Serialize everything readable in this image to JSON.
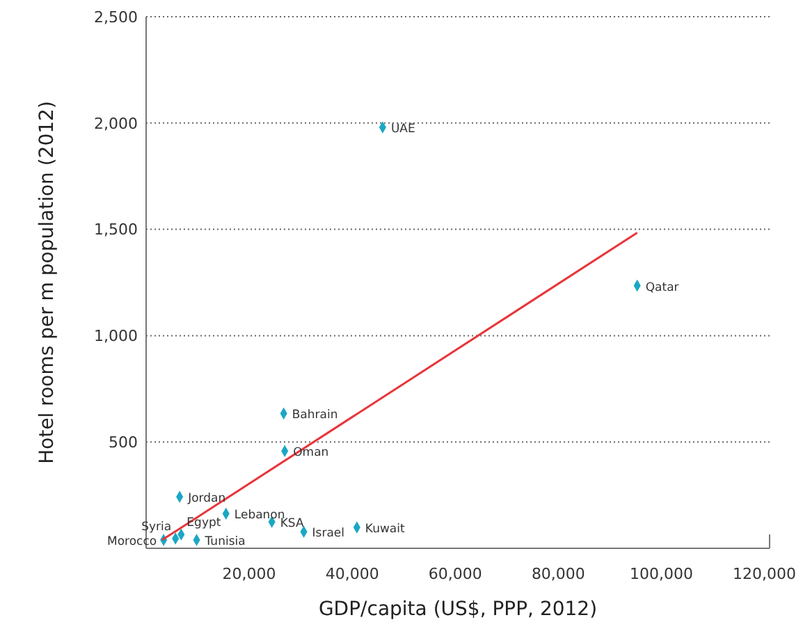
{
  "chart_data": {
    "type": "scatter",
    "xlabel": "GDP/capita (US$, PPP, 2012)",
    "ylabel": "Hotel rooms per m population (2012)",
    "xlim": [
      0,
      121000
    ],
    "ylim": [
      0,
      2500
    ],
    "xticks": [
      {
        "value": 20000,
        "label": "20,000"
      },
      {
        "value": 40000,
        "label": "40,000"
      },
      {
        "value": 60000,
        "label": "60,000"
      },
      {
        "value": 80000,
        "label": "80,000"
      },
      {
        "value": 100000,
        "label": "100,000"
      },
      {
        "value": 120000,
        "label": "120,000"
      }
    ],
    "yticks": [
      {
        "value": 500,
        "label": "500"
      },
      {
        "value": 1000,
        "label": "1,000"
      },
      {
        "value": 1500,
        "label": "1,500"
      },
      {
        "value": 2000,
        "label": "2,000"
      },
      {
        "value": 2500,
        "label": "2,500"
      }
    ],
    "grid": "y",
    "marker": "diamond",
    "series": [
      {
        "color": "#1aa7c4",
        "x": [
          45900,
          95300,
          26700,
          26900,
          6500,
          15500,
          24400,
          30600,
          40900,
          5700,
          6800,
          9800,
          3400
        ],
        "values": [
          1980,
          1235,
          634,
          457,
          242,
          163,
          124,
          78,
          98,
          46,
          65,
          39,
          39
        ]
      },
      {
        "type": "line",
        "marker": "none",
        "color": "#e8353a",
        "x": [
          3100,
          95300
        ],
        "values": [
          39,
          1484
        ]
      }
    ],
    "annotations": [
      {
        "text": "UAE",
        "x": 45900,
        "y": 1980
      },
      {
        "text": "Qatar",
        "x": 95300,
        "y": 1235
      },
      {
        "text": "Bahrain",
        "x": 26700,
        "y": 634
      },
      {
        "text": "Oman",
        "x": 26900,
        "y": 457
      },
      {
        "text": "Jordan",
        "x": 6500,
        "y": 242
      },
      {
        "text": "Lebanon",
        "x": 15500,
        "y": 163
      },
      {
        "text": "KSA",
        "x": 24400,
        "y": 124
      },
      {
        "text": "Israel",
        "x": 30600,
        "y": 78
      },
      {
        "text": "Kuwait",
        "x": 40900,
        "y": 98
      },
      {
        "text": "Syria",
        "x": 5700,
        "y": 46
      },
      {
        "text": "Egypt",
        "x": 6800,
        "y": 65
      },
      {
        "text": "Tunisia",
        "x": 9800,
        "y": 39
      },
      {
        "text": "Morocco",
        "x": 3400,
        "y": 39
      }
    ]
  }
}
